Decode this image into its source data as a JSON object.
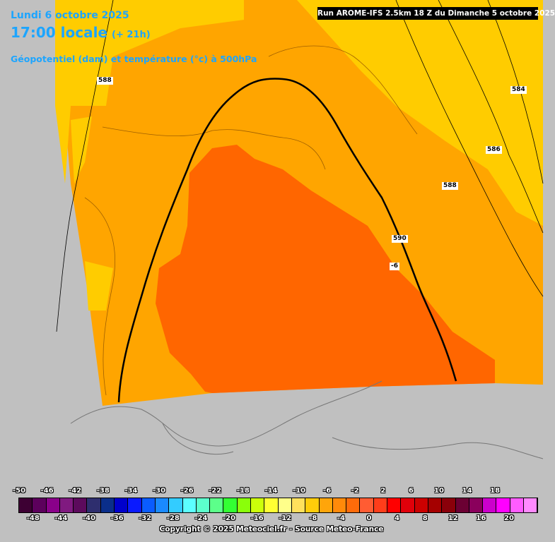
{
  "header": {
    "date": "Lundi 6 octobre 2025",
    "time": "17:00 locale",
    "lead": "(+ 21h)",
    "subtitle": "Géopotentiel (dam) et température (°c) à 500hPa",
    "run": "Run AROME-IFS 2.5km 18 Z du Dimanche 5 octobre 2025"
  },
  "contour_labels": [
    {
      "text": "588",
      "name": "contour-label-588-west"
    },
    {
      "text": "584",
      "name": "contour-label-584"
    },
    {
      "text": "586",
      "name": "contour-label-586"
    },
    {
      "text": "588",
      "name": "contour-label-588-east"
    },
    {
      "text": "590",
      "name": "contour-label-590"
    },
    {
      "text": "-6",
      "name": "isotherm-label-minus6"
    }
  ],
  "legend": {
    "colors": [
      "#3d0033",
      "#5c005c",
      "#8a008a",
      "#801a80",
      "#5c0a5c",
      "#2e2e6e",
      "#0a2e8a",
      "#0000cc",
      "#0a1aff",
      "#0a5cff",
      "#1a8aff",
      "#33ccff",
      "#5cffff",
      "#5cffcc",
      "#5cff8a",
      "#33ff33",
      "#8aff0a",
      "#ccff0a",
      "#ffff33",
      "#ffff8a",
      "#ffe05c",
      "#ffcc0a",
      "#ffa50a",
      "#ff8a0a",
      "#ff6b0a",
      "#ff5c33",
      "#ff3d1a",
      "#ff0000",
      "#e0000a",
      "#cc0000",
      "#a50000",
      "#8a000a",
      "#6b0033",
      "#8a005c",
      "#cc00cc",
      "#ff00ff",
      "#ff5cff",
      "#ff8aff"
    ],
    "top_ticks": [
      "-50",
      "-46",
      "-42",
      "-38",
      "-34",
      "-30",
      "-26",
      "-22",
      "-18",
      "-14",
      "-10",
      "-6",
      "-2",
      "2",
      "6",
      "10",
      "14",
      "18"
    ],
    "bottom_ticks": [
      "-48",
      "-44",
      "-40",
      "-36",
      "-32",
      "-28",
      "-24",
      "-20",
      "-16",
      "-12",
      "-8",
      "-4",
      "0",
      "4",
      "8",
      "12",
      "16",
      "20"
    ]
  },
  "copyright": "Copyright © 2025 Meteociel.fr - Source Meteo-France"
}
